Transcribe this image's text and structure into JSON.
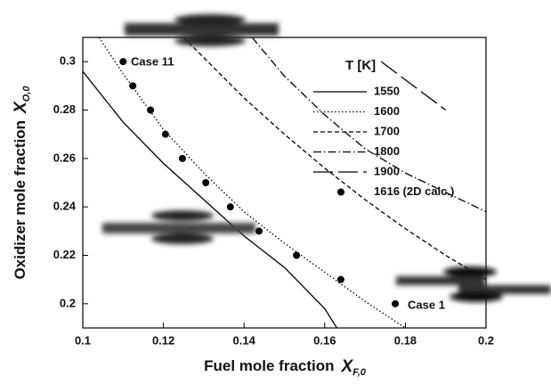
{
  "chart_data": {
    "type": "line",
    "xlabel": "Fuel mole fraction",
    "xlabel_symbol": "X",
    "xlabel_sub": "F,0",
    "ylabel": "Oxidizer mole fraction",
    "ylabel_symbol": "X",
    "ylabel_sub": "O,0",
    "xlim": [
      0.1,
      0.2
    ],
    "xticks": [
      0.1,
      0.12,
      0.14,
      0.16,
      0.18,
      0.2
    ],
    "ylim": [
      0.19,
      0.31
    ],
    "yticks": [
      0.2,
      0.22,
      0.24,
      0.26,
      0.28,
      0.3
    ],
    "legend_title": "T [K]",
    "legend_position": "upper right",
    "annotations": [
      "Case 11",
      "Case 1"
    ],
    "series": [
      {
        "name": "1550",
        "color": "#000000",
        "style": "solid",
        "x": [
          0.1,
          0.11,
          0.12,
          0.13,
          0.14,
          0.15,
          0.16,
          0.163
        ],
        "values": [
          0.296,
          0.275,
          0.258,
          0.243,
          0.228,
          0.215,
          0.198,
          0.19
        ]
      },
      {
        "name": "1600",
        "color": "#000000",
        "style": "dotted",
        "x": [
          0.104,
          0.11,
          0.12,
          0.13,
          0.14,
          0.15,
          0.16,
          0.17,
          0.18
        ],
        "values": [
          0.31,
          0.295,
          0.272,
          0.254,
          0.238,
          0.225,
          0.213,
          0.201,
          0.19
        ]
      },
      {
        "name": "1700",
        "color": "#000000",
        "style": "dashed",
        "x": [
          0.125,
          0.14,
          0.15,
          0.16,
          0.17,
          0.18,
          0.19,
          0.2
        ],
        "values": [
          0.31,
          0.285,
          0.27,
          0.256,
          0.243,
          0.231,
          0.22,
          0.21
        ]
      },
      {
        "name": "1800",
        "color": "#000000",
        "style": "dashdot",
        "x": [
          0.142,
          0.15,
          0.16,
          0.17,
          0.18,
          0.19,
          0.2
        ],
        "values": [
          0.31,
          0.294,
          0.278,
          0.264,
          0.254,
          0.246,
          0.238
        ]
      },
      {
        "name": "1900",
        "color": "#000000",
        "style": "longdash",
        "x": [
          0.174,
          0.182,
          0.19
        ],
        "values": [
          0.3,
          0.29,
          0.28
        ]
      },
      {
        "name": "1616 (2D calc.)",
        "color": "#000000",
        "style": "marker",
        "x": [
          0.11,
          0.1124,
          0.1168,
          0.1205,
          0.1247,
          0.1305,
          0.1366,
          0.1437,
          0.153,
          0.164,
          0.1775
        ],
        "values": [
          0.3,
          0.29,
          0.28,
          0.27,
          0.26,
          0.25,
          0.24,
          0.23,
          0.22,
          0.21,
          0.2
        ]
      }
    ]
  }
}
